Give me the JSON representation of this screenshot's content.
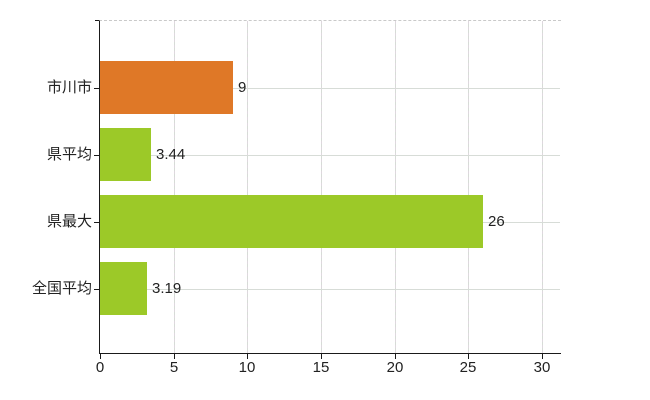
{
  "chart_data": {
    "type": "bar",
    "orientation": "horizontal",
    "title": "",
    "xlabel": "",
    "ylabel": "",
    "categories": [
      "市川市",
      "県平均",
      "県最大",
      "全国平均"
    ],
    "values": [
      9,
      3.44,
      26,
      3.19
    ],
    "value_labels": [
      "9",
      "3.44",
      "26",
      "3.19"
    ],
    "bar_colors": [
      "#df7827",
      "#9cc928",
      "#9cc928",
      "#9cc928"
    ],
    "xlim": [
      0,
      31.2
    ],
    "xticks": [
      0,
      5,
      10,
      15,
      20,
      25,
      30
    ],
    "grid": true,
    "legend": false
  },
  "colors": {
    "background": "#ffffff",
    "axis": "#1a1a1a",
    "grid_h": "#d7dcd7",
    "grid_dash_a": "#ded7de",
    "grid_dash_b": "#d6dcd6",
    "top_border": "#c9c9c9",
    "text": "#222222"
  }
}
